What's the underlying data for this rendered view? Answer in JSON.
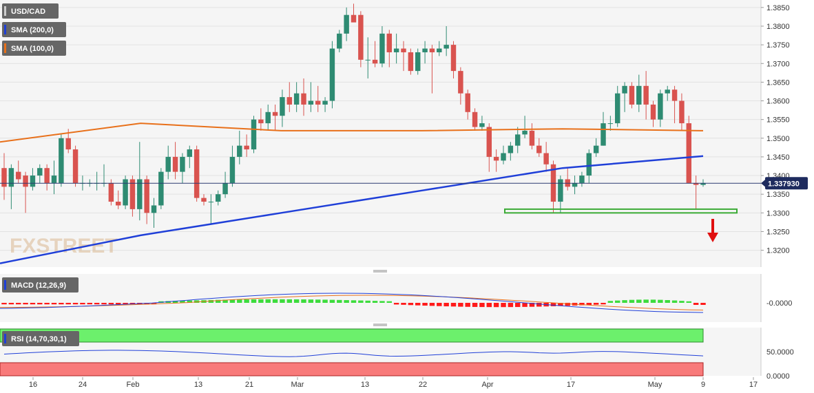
{
  "chart_data": [
    {
      "type": "candlestick",
      "symbol": "USD/CAD",
      "timeframe": "daily",
      "y_ticks": [
        1.32,
        1.325,
        1.33,
        1.335,
        1.34,
        1.345,
        1.35,
        1.355,
        1.36,
        1.365,
        1.37,
        1.375,
        1.38,
        1.385
      ],
      "y_tick_labels": [
        "1.3200",
        "1.3250",
        "1.3300",
        "1.3350",
        "1.3400",
        "1.3450",
        "1.3500",
        "1.3550",
        "1.3600",
        "1.3650",
        "1.3700",
        "1.3750",
        "1.3800",
        "1.3850"
      ],
      "ylim": [
        1.3155,
        1.387
      ],
      "x_labels": [
        "16",
        "24",
        "Feb",
        "13",
        "21",
        "Mar",
        "13",
        "22",
        "Apr",
        "17",
        "May",
        "9",
        "17"
      ],
      "current_price": 1.33793,
      "current_price_label": "1.337930",
      "legend": [
        {
          "label": "USD/CAD",
          "color": "#666666"
        },
        {
          "label": "SMA (200,0)",
          "color": "#1f3fd8"
        },
        {
          "label": "SMA (100,0)",
          "color": "#e8701a"
        }
      ],
      "watermark": "FXSTREET",
      "candles": [
        [
          1.342,
          1.346,
          1.3335,
          1.337
        ],
        [
          1.337,
          1.343,
          1.331,
          1.342
        ],
        [
          1.341,
          1.344,
          1.338,
          1.339
        ],
        [
          1.34,
          1.341,
          1.33,
          1.337
        ],
        [
          1.337,
          1.342,
          1.336,
          1.34
        ],
        [
          1.34,
          1.343,
          1.338,
          1.342
        ],
        [
          1.342,
          1.343,
          1.336,
          1.338
        ],
        [
          1.338,
          1.344,
          1.335,
          1.34
        ],
        [
          1.338,
          1.351,
          1.337,
          1.35
        ],
        [
          1.35,
          1.3525,
          1.346,
          1.347
        ],
        [
          1.347,
          1.348,
          1.337,
          1.338
        ],
        [
          1.338,
          1.34,
          1.336,
          1.338
        ],
        [
          1.338,
          1.339,
          1.337,
          1.338
        ],
        [
          1.338,
          1.341,
          1.336,
          1.338
        ],
        [
          1.338,
          1.343,
          1.337,
          1.338
        ],
        [
          1.338,
          1.339,
          1.332,
          1.333
        ],
        [
          1.333,
          1.336,
          1.331,
          1.332
        ],
        [
          1.332,
          1.34,
          1.331,
          1.339
        ],
        [
          1.339,
          1.34,
          1.329,
          1.331
        ],
        [
          1.331,
          1.349,
          1.328,
          1.339
        ],
        [
          1.339,
          1.34,
          1.327,
          1.33
        ],
        [
          1.33,
          1.334,
          1.326,
          1.332
        ],
        [
          1.332,
          1.342,
          1.331,
          1.341
        ],
        [
          1.341,
          1.348,
          1.339,
          1.345
        ],
        [
          1.345,
          1.349,
          1.339,
          1.341
        ],
        [
          1.341,
          1.346,
          1.338,
          1.345
        ],
        [
          1.345,
          1.348,
          1.342,
          1.347
        ],
        [
          1.347,
          1.348,
          1.333,
          1.334
        ],
        [
          1.334,
          1.335,
          1.332,
          1.333
        ],
        [
          1.333,
          1.335,
          1.327,
          1.333
        ],
        [
          1.333,
          1.336,
          1.332,
          1.335
        ],
        [
          1.335,
          1.341,
          1.334,
          1.338
        ],
        [
          1.338,
          1.348,
          1.337,
          1.345
        ],
        [
          1.345,
          1.352,
          1.343,
          1.348
        ],
        [
          1.348,
          1.351,
          1.345,
          1.347
        ],
        [
          1.347,
          1.356,
          1.346,
          1.355
        ],
        [
          1.355,
          1.358,
          1.352,
          1.354
        ],
        [
          1.354,
          1.359,
          1.352,
          1.357
        ],
        [
          1.357,
          1.359,
          1.352,
          1.356
        ],
        [
          1.356,
          1.363,
          1.353,
          1.361
        ],
        [
          1.361,
          1.365,
          1.357,
          1.359
        ],
        [
          1.359,
          1.365,
          1.357,
          1.362
        ],
        [
          1.362,
          1.366,
          1.356,
          1.359
        ],
        [
          1.359,
          1.365,
          1.357,
          1.36
        ],
        [
          1.36,
          1.364,
          1.357,
          1.359
        ],
        [
          1.359,
          1.361,
          1.357,
          1.36
        ],
        [
          1.36,
          1.376,
          1.358,
          1.374
        ],
        [
          1.374,
          1.379,
          1.373,
          1.378
        ],
        [
          1.378,
          1.385,
          1.376,
          1.383
        ],
        [
          1.383,
          1.386,
          1.381,
          1.381
        ],
        [
          1.383,
          1.384,
          1.369,
          1.371
        ],
        [
          1.371,
          1.377,
          1.366,
          1.371
        ],
        [
          1.371,
          1.376,
          1.369,
          1.37
        ],
        [
          1.37,
          1.38,
          1.369,
          1.378
        ],
        [
          1.378,
          1.379,
          1.369,
          1.373
        ],
        [
          1.373,
          1.378,
          1.37,
          1.374
        ],
        [
          1.374,
          1.376,
          1.368,
          1.373
        ],
        [
          1.373,
          1.374,
          1.367,
          1.368
        ],
        [
          1.368,
          1.374,
          1.367,
          1.373
        ],
        [
          1.373,
          1.376,
          1.37,
          1.374
        ],
        [
          1.374,
          1.375,
          1.362,
          1.373
        ],
        [
          1.373,
          1.376,
          1.372,
          1.374
        ],
        [
          1.374,
          1.38,
          1.372,
          1.375
        ],
        [
          1.375,
          1.376,
          1.366,
          1.368
        ],
        [
          1.368,
          1.369,
          1.359,
          1.362
        ],
        [
          1.362,
          1.363,
          1.355,
          1.357
        ],
        [
          1.357,
          1.358,
          1.352,
          1.353
        ],
        [
          1.353,
          1.356,
          1.352,
          1.354
        ],
        [
          1.353,
          1.354,
          1.341,
          1.345
        ],
        [
          1.345,
          1.347,
          1.341,
          1.344
        ],
        [
          1.344,
          1.348,
          1.343,
          1.346
        ],
        [
          1.346,
          1.349,
          1.344,
          1.348
        ],
        [
          1.348,
          1.353,
          1.346,
          1.351
        ],
        [
          1.351,
          1.356,
          1.35,
          1.352
        ],
        [
          1.352,
          1.354,
          1.347,
          1.348
        ],
        [
          1.348,
          1.35,
          1.345,
          1.346
        ],
        [
          1.346,
          1.349,
          1.341,
          1.343
        ],
        [
          1.343,
          1.344,
          1.33,
          1.333
        ],
        [
          1.333,
          1.34,
          1.33,
          1.339
        ],
        [
          1.339,
          1.342,
          1.336,
          1.337
        ],
        [
          1.337,
          1.34,
          1.335,
          1.338
        ],
        [
          1.338,
          1.341,
          1.337,
          1.34
        ],
        [
          1.34,
          1.347,
          1.338,
          1.346
        ],
        [
          1.346,
          1.35,
          1.345,
          1.348
        ],
        [
          1.348,
          1.357,
          1.348,
          1.354
        ],
        [
          1.354,
          1.356,
          1.352,
          1.354
        ],
        [
          1.354,
          1.364,
          1.353,
          1.362
        ],
        [
          1.362,
          1.365,
          1.357,
          1.364
        ],
        [
          1.364,
          1.365,
          1.358,
          1.359
        ],
        [
          1.359,
          1.367,
          1.357,
          1.364
        ],
        [
          1.364,
          1.368,
          1.355,
          1.359
        ],
        [
          1.359,
          1.36,
          1.353,
          1.355
        ],
        [
          1.355,
          1.363,
          1.353,
          1.362
        ],
        [
          1.362,
          1.364,
          1.36,
          1.363
        ],
        [
          1.363,
          1.364,
          1.354,
          1.36
        ],
        [
          1.36,
          1.362,
          1.352,
          1.354
        ],
        [
          1.354,
          1.356,
          1.338,
          1.338
        ],
        [
          1.338,
          1.34,
          1.331,
          1.3375
        ],
        [
          1.3375,
          1.339,
          1.337,
          1.338
        ]
      ],
      "sma_200": {
        "name": "SMA (200,0)",
        "values": [
          1.3165,
          1.324,
          1.33,
          1.336,
          1.342,
          1.3452
        ]
      },
      "sma_100": {
        "name": "SMA (100,0)",
        "values": [
          1.349,
          1.354,
          1.352,
          1.352,
          1.3525,
          1.352
        ]
      },
      "support_zone": {
        "from": 1.33,
        "to": 1.331
      },
      "signal_arrow": "down"
    },
    {
      "type": "histogram",
      "name": "MACD (12,26,9)",
      "y_tick_labels": [
        "-0.0000"
      ],
      "ylim": [
        -0.0045,
        0.0045
      ]
    },
    {
      "type": "line",
      "name": "RSI (14,70,30,1)",
      "y_ticks": [
        0,
        50
      ],
      "y_tick_labels": [
        "0.0000",
        "50.0000"
      ],
      "ylim": [
        0,
        100
      ],
      "overbought": 70,
      "oversold": 30
    }
  ]
}
